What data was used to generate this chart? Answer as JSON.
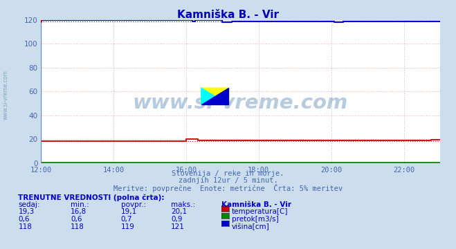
{
  "title": "Kamniška B. - Vir",
  "bg_color": "#ccdded",
  "plot_bg_color": "#ffffff",
  "grid_color": "#ddaaaa",
  "xmin": 0,
  "xmax": 144,
  "ymin": 0,
  "ymax": 120,
  "yticks": [
    0,
    20,
    40,
    60,
    80,
    100,
    120
  ],
  "xtick_labels": [
    "12:00",
    "14:00",
    "16:00",
    "18:00",
    "20:00",
    "22:00"
  ],
  "xtick_positions": [
    0,
    24,
    48,
    72,
    96,
    120
  ],
  "temperatura_color": "#cc0000",
  "pretok_color": "#008800",
  "visina_color": "#0000cc",
  "text_color": "#4466aa",
  "title_color": "#0000bb",
  "watermark": "www.si-vreme.com",
  "watermark_color": "#4477aa",
  "subtitle1": "Slovenija / reke in morje.",
  "subtitle2": "zadnjih 12ur / 5 minut.",
  "subtitle3": "Meritve: povprečne  Enote: metrične  Črta: 5% meritev",
  "table_header": "TRENUTNE VREDNOSTI (polna črta):",
  "col_headers": [
    "sedaj:",
    "min.:",
    "povpr.:",
    "maks.:",
    "Kamniška B. - Vir"
  ],
  "row1": [
    "19,3",
    "16,8",
    "19,1",
    "20,1",
    "temperatura[C]"
  ],
  "row2": [
    "0,6",
    "0,6",
    "0,7",
    "0,9",
    "pretok[m3/s]"
  ],
  "row3": [
    "118",
    "118",
    "119",
    "121",
    "višina[cm]"
  ],
  "sidewater": "www.si-vreme.com"
}
